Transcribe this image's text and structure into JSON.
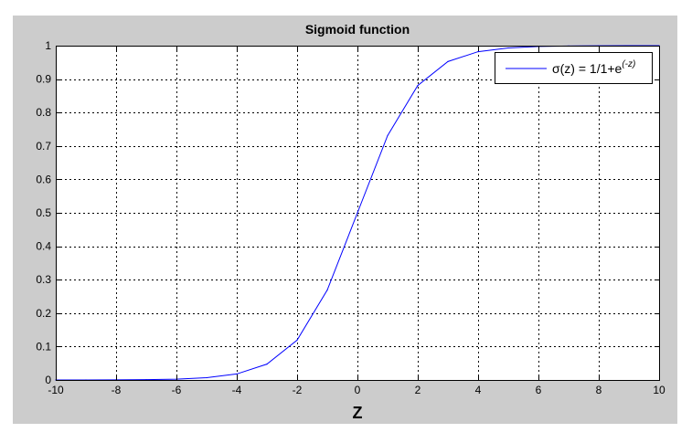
{
  "chart_data": {
    "type": "line",
    "title": "Sigmoid function",
    "xlabel": "Z",
    "ylabel": "",
    "xlim": [
      -10,
      10
    ],
    "ylim": [
      0,
      1
    ],
    "x_ticks": [
      "-10",
      "-8",
      "-6",
      "-4",
      "-2",
      "0",
      "2",
      "4",
      "6",
      "8",
      "10"
    ],
    "y_ticks": [
      "0",
      "0.1",
      "0.2",
      "0.3",
      "0.4",
      "0.5",
      "0.6",
      "0.7",
      "0.8",
      "0.9",
      "1"
    ],
    "grid": true,
    "legend_position": "top-right",
    "legend": {
      "prefix": "σ(z) = 1/1+e",
      "exponent": "(-z)"
    },
    "series": [
      {
        "color": "#0000ff",
        "x": [
          -10,
          -9,
          -8,
          -7,
          -6,
          -5,
          -4,
          -3,
          -2,
          -1,
          0,
          1,
          2,
          3,
          4,
          5,
          6,
          7,
          8,
          9,
          10
        ],
        "y": [
          4.54e-05,
          0.0001234,
          0.0003354,
          0.0009111,
          0.0024726,
          0.0066929,
          0.0179862,
          0.0474259,
          0.1192029,
          0.2689414,
          0.5,
          0.7310586,
          0.8807971,
          0.9525741,
          0.9820138,
          0.9933071,
          0.9975274,
          0.9990889,
          0.9996646,
          0.9998766,
          0.9999546
        ]
      }
    ]
  }
}
